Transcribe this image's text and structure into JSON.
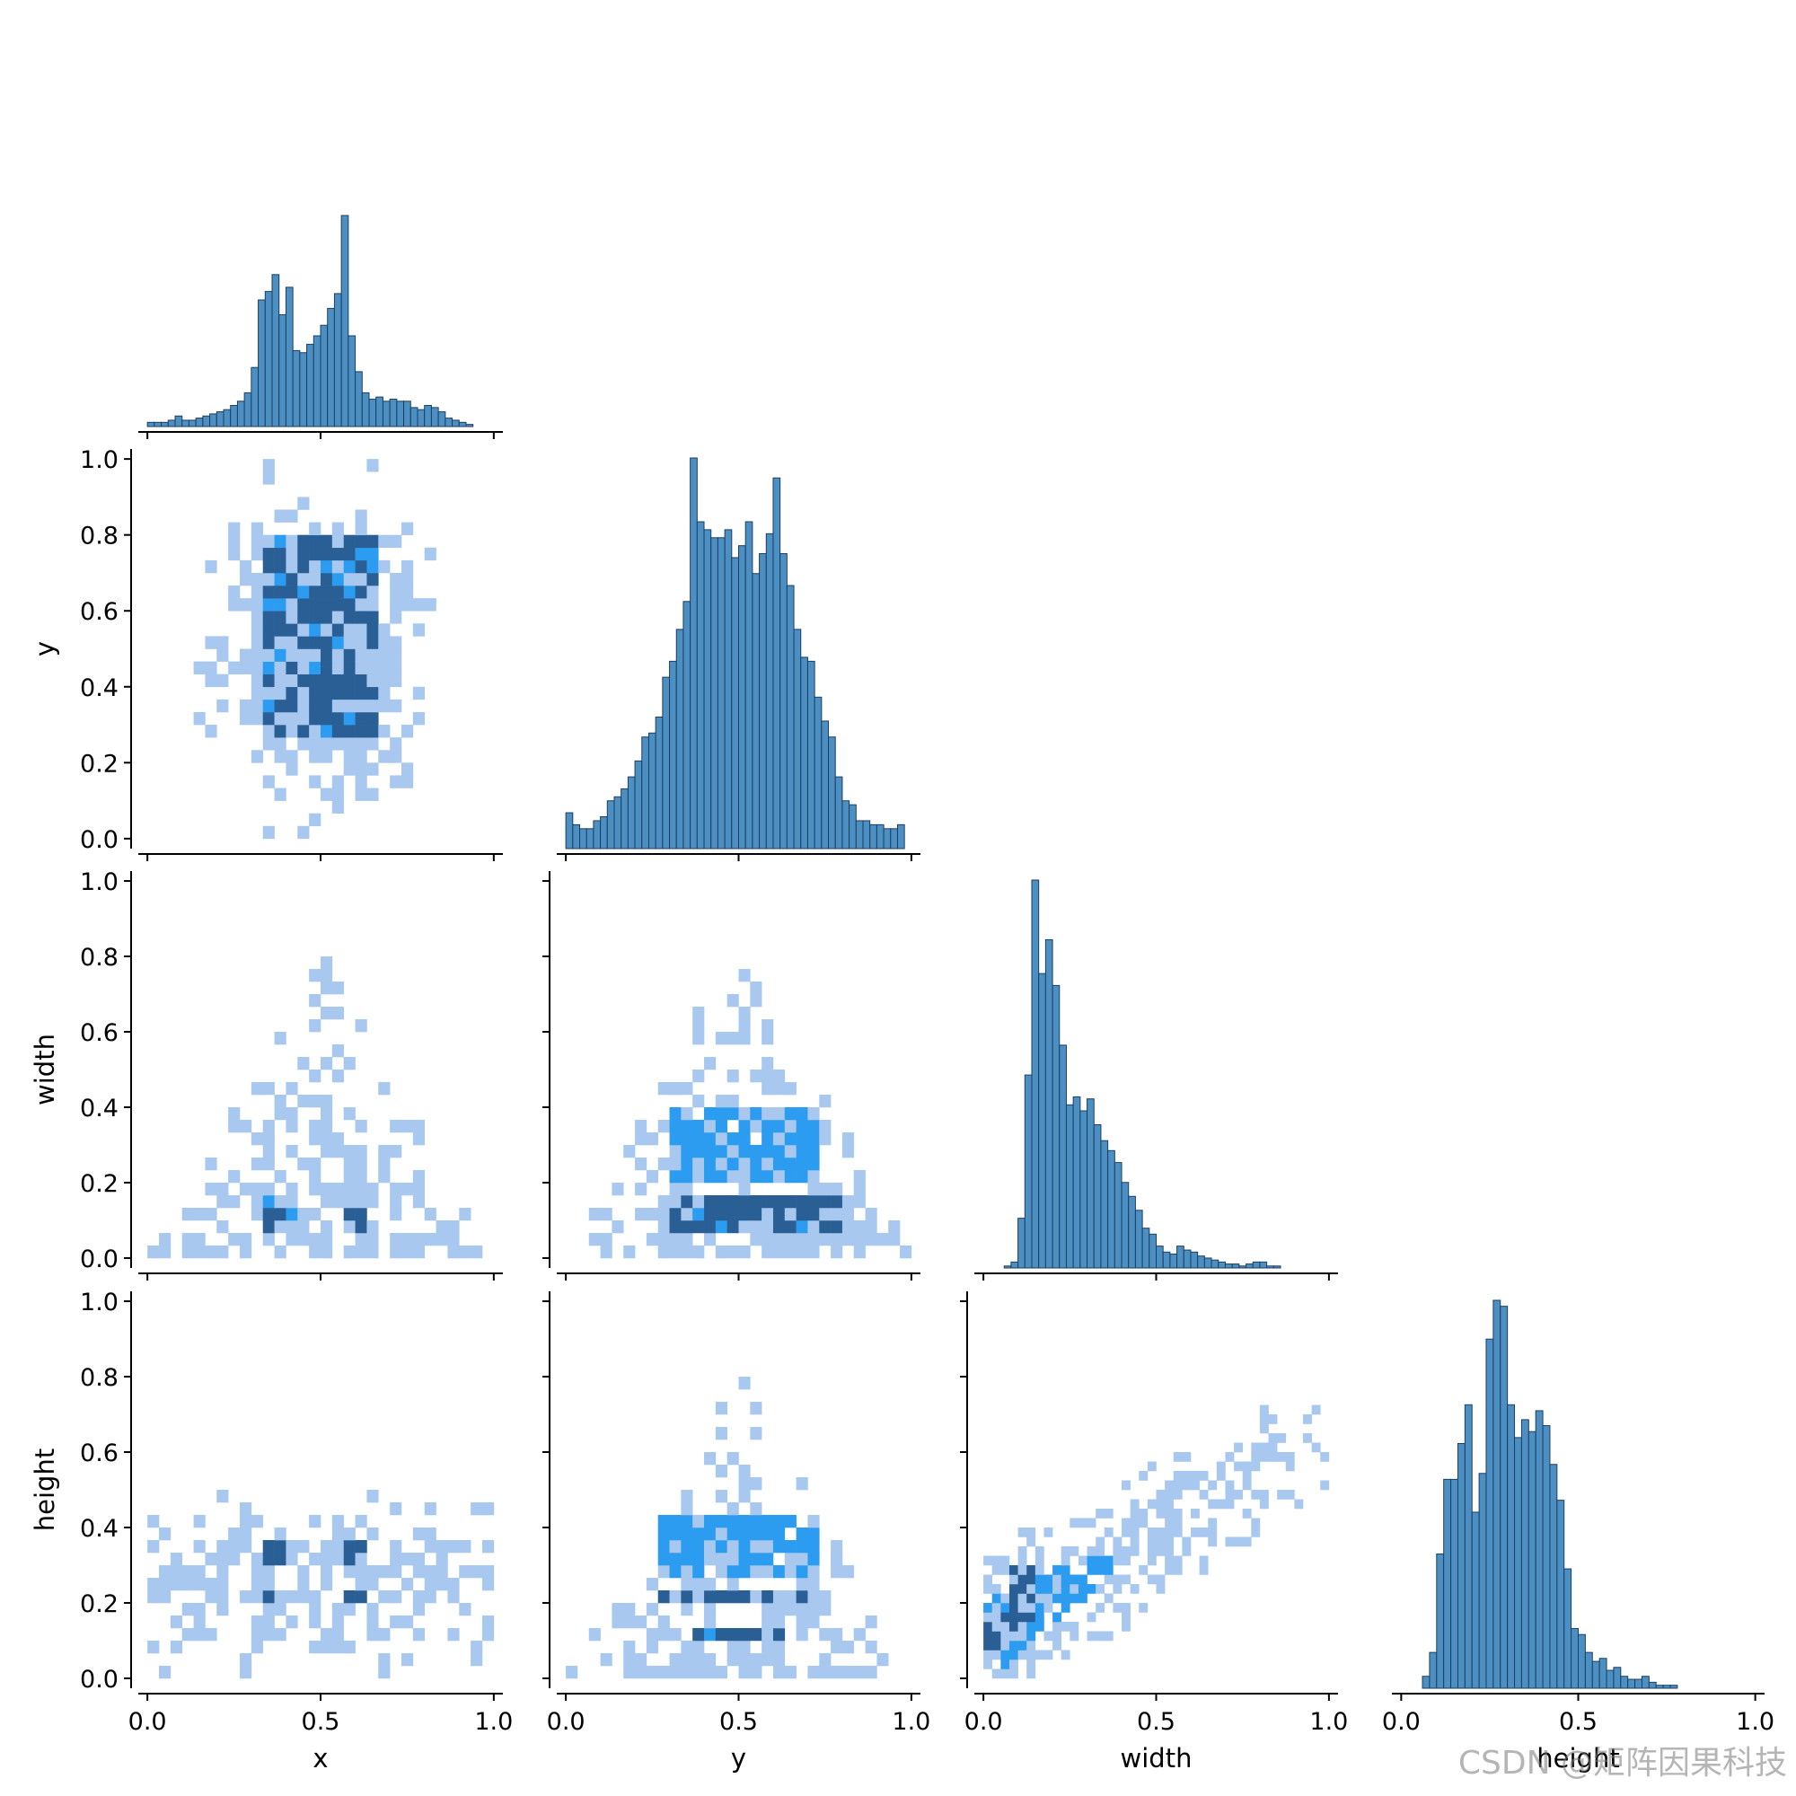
{
  "watermark": "CSDN @矩阵因果科技",
  "colors": {
    "hist_fill": "#4c8fc3",
    "hist_edge": "#1f3e5e",
    "heat_low": "#a8c8ef",
    "heat_mid": "#2c9cf0",
    "heat_high": "#2a5f95",
    "axis": "#000000"
  },
  "chart_data": {
    "type": "pairplot",
    "variables": [
      "x",
      "y",
      "width",
      "height"
    ],
    "axis_range": [
      0.0,
      1.0
    ],
    "bottom_tick_labels": [
      "0.0",
      "0.5",
      "1.0"
    ],
    "left_tick_labels": [
      "0.0",
      "0.2",
      "0.4",
      "0.6",
      "0.8",
      "1.0"
    ],
    "diagonal_histograms": [
      {
        "variable": "x",
        "bins": 50,
        "range": [
          0,
          1
        ],
        "values": [
          2,
          2,
          2,
          3,
          5,
          3,
          3,
          4,
          5,
          6,
          7,
          8,
          10,
          12,
          16,
          28,
          60,
          64,
          72,
          53,
          66,
          36,
          35,
          39,
          43,
          48,
          56,
          63,
          100,
          43,
          26,
          16,
          13,
          14,
          12,
          13,
          12,
          12,
          9,
          8,
          10,
          9,
          7,
          4,
          3,
          2,
          1,
          0,
          0,
          0
        ]
      },
      {
        "variable": "y",
        "bins": 50,
        "range": [
          0,
          1
        ],
        "values": [
          9,
          6,
          5,
          5,
          7,
          8,
          12,
          13,
          15,
          18,
          22,
          28,
          29,
          33,
          43,
          47,
          55,
          62,
          98,
          82,
          80,
          78,
          78,
          80,
          73,
          76,
          82,
          69,
          74,
          79,
          93,
          74,
          66,
          55,
          48,
          47,
          38,
          32,
          28,
          18,
          12,
          11,
          7,
          7,
          6,
          6,
          5,
          5,
          6,
          0
        ]
      },
      {
        "variable": "width",
        "bins": 50,
        "range": [
          0,
          1
        ],
        "values": [
          0,
          0,
          0,
          1,
          3,
          25,
          97,
          195,
          148,
          165,
          142,
          112,
          82,
          86,
          79,
          85,
          72,
          64,
          59,
          53,
          43,
          36,
          29,
          20,
          17,
          11,
          8,
          7,
          11,
          9,
          8,
          6,
          5,
          4,
          3,
          2,
          2,
          1,
          2,
          3,
          3,
          1,
          1,
          0,
          0,
          0,
          0,
          0,
          0,
          0
        ]
      },
      {
        "variable": "height",
        "bins": 50,
        "range": [
          0,
          1
        ],
        "values": [
          0,
          0,
          0,
          4,
          12,
          45,
          70,
          70,
          82,
          95,
          59,
          72,
          117,
          130,
          128,
          95,
          84,
          90,
          86,
          93,
          88,
          75,
          63,
          40,
          20,
          18,
          12,
          9,
          10,
          6,
          7,
          4,
          3,
          3,
          4,
          2,
          1,
          1,
          1,
          0,
          0,
          0,
          0,
          0,
          0,
          0,
          0,
          0,
          0,
          0
        ]
      }
    ],
    "pair_heatmaps": [
      {
        "x": "x",
        "y": "y",
        "bins": 30,
        "description_level": "dense block x 0.33-0.66, y 0.25-0.80"
      },
      {
        "x": "x",
        "y": "width",
        "bins": 30,
        "description_level": "triangle, dark cells near width 0.1-0.15"
      },
      {
        "x": "y",
        "y": "width",
        "bins": 30,
        "description_level": "triangle, dark band at width 0.1-0.15, y 0.25-0.8"
      },
      {
        "x": "x",
        "y": "height",
        "bins": 30,
        "description_level": "dark cells at height ~0.22 and ~0.35"
      },
      {
        "x": "y",
        "y": "height",
        "bins": 30,
        "description_level": "triangle, dark band at height ~0.22"
      },
      {
        "x": "width",
        "y": "height",
        "bins": 40,
        "description_level": "positive correlation, dense near width 0.1, height 0.2"
      }
    ]
  }
}
